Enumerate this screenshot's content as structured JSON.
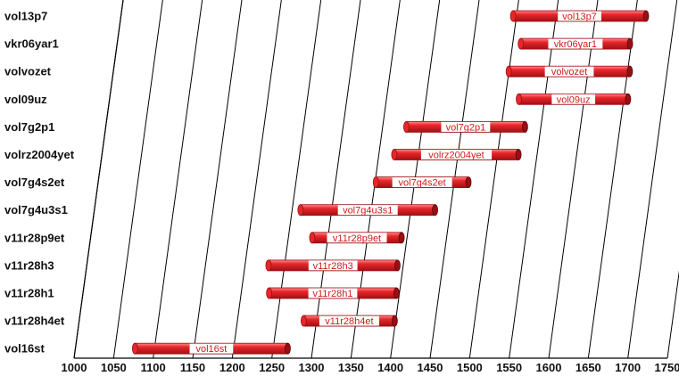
{
  "chart_data": {
    "type": "bar",
    "orientation": "horizontal-range",
    "style": "3d-cylinder",
    "title": "",
    "xlabel": "",
    "ylabel": "",
    "xlim": [
      1000,
      1750
    ],
    "x_ticks": [
      1000,
      1050,
      1100,
      1150,
      1200,
      1250,
      1300,
      1350,
      1400,
      1450,
      1500,
      1550,
      1600,
      1650,
      1700,
      1750
    ],
    "grid": true,
    "categories": [
      "vol13p7",
      "vkr06yar1",
      "volvozet",
      "vol09uz",
      "vol7g2p1",
      "volrz2004yet",
      "vol7g4s2et",
      "vol7g4u3s1",
      "v11r28p9et",
      "v11r28h3",
      "v11r28h1",
      "v11r28h4et",
      "vol16st"
    ],
    "series": [
      {
        "ranges": [
          {
            "start": 1552,
            "end": 1720
          },
          {
            "start": 1562,
            "end": 1700
          },
          {
            "start": 1547,
            "end": 1700
          },
          {
            "start": 1560,
            "end": 1698
          },
          {
            "start": 1418,
            "end": 1568
          },
          {
            "start": 1403,
            "end": 1560
          },
          {
            "start": 1380,
            "end": 1497
          },
          {
            "start": 1285,
            "end": 1455
          },
          {
            "start": 1300,
            "end": 1413
          },
          {
            "start": 1245,
            "end": 1408
          },
          {
            "start": 1246,
            "end": 1407
          },
          {
            "start": 1290,
            "end": 1405
          },
          {
            "start": 1077,
            "end": 1270
          }
        ],
        "labels": [
          "vol13p7",
          "vkr06yar1",
          "volvozet",
          "vol09uz",
          "vol7g2p1",
          "volrz2004yet",
          "vol7g4s2et",
          "vol7g4u3s1",
          "v11r28p9et",
          "v11r28h3",
          "v11r28h1",
          "v11r28h4et",
          "vol16st"
        ]
      }
    ]
  },
  "colors": {
    "bar_fill": "#e8262a",
    "bar_dark": "#9a0f12",
    "label_text": "#d11a1a",
    "grid": "#000000"
  }
}
